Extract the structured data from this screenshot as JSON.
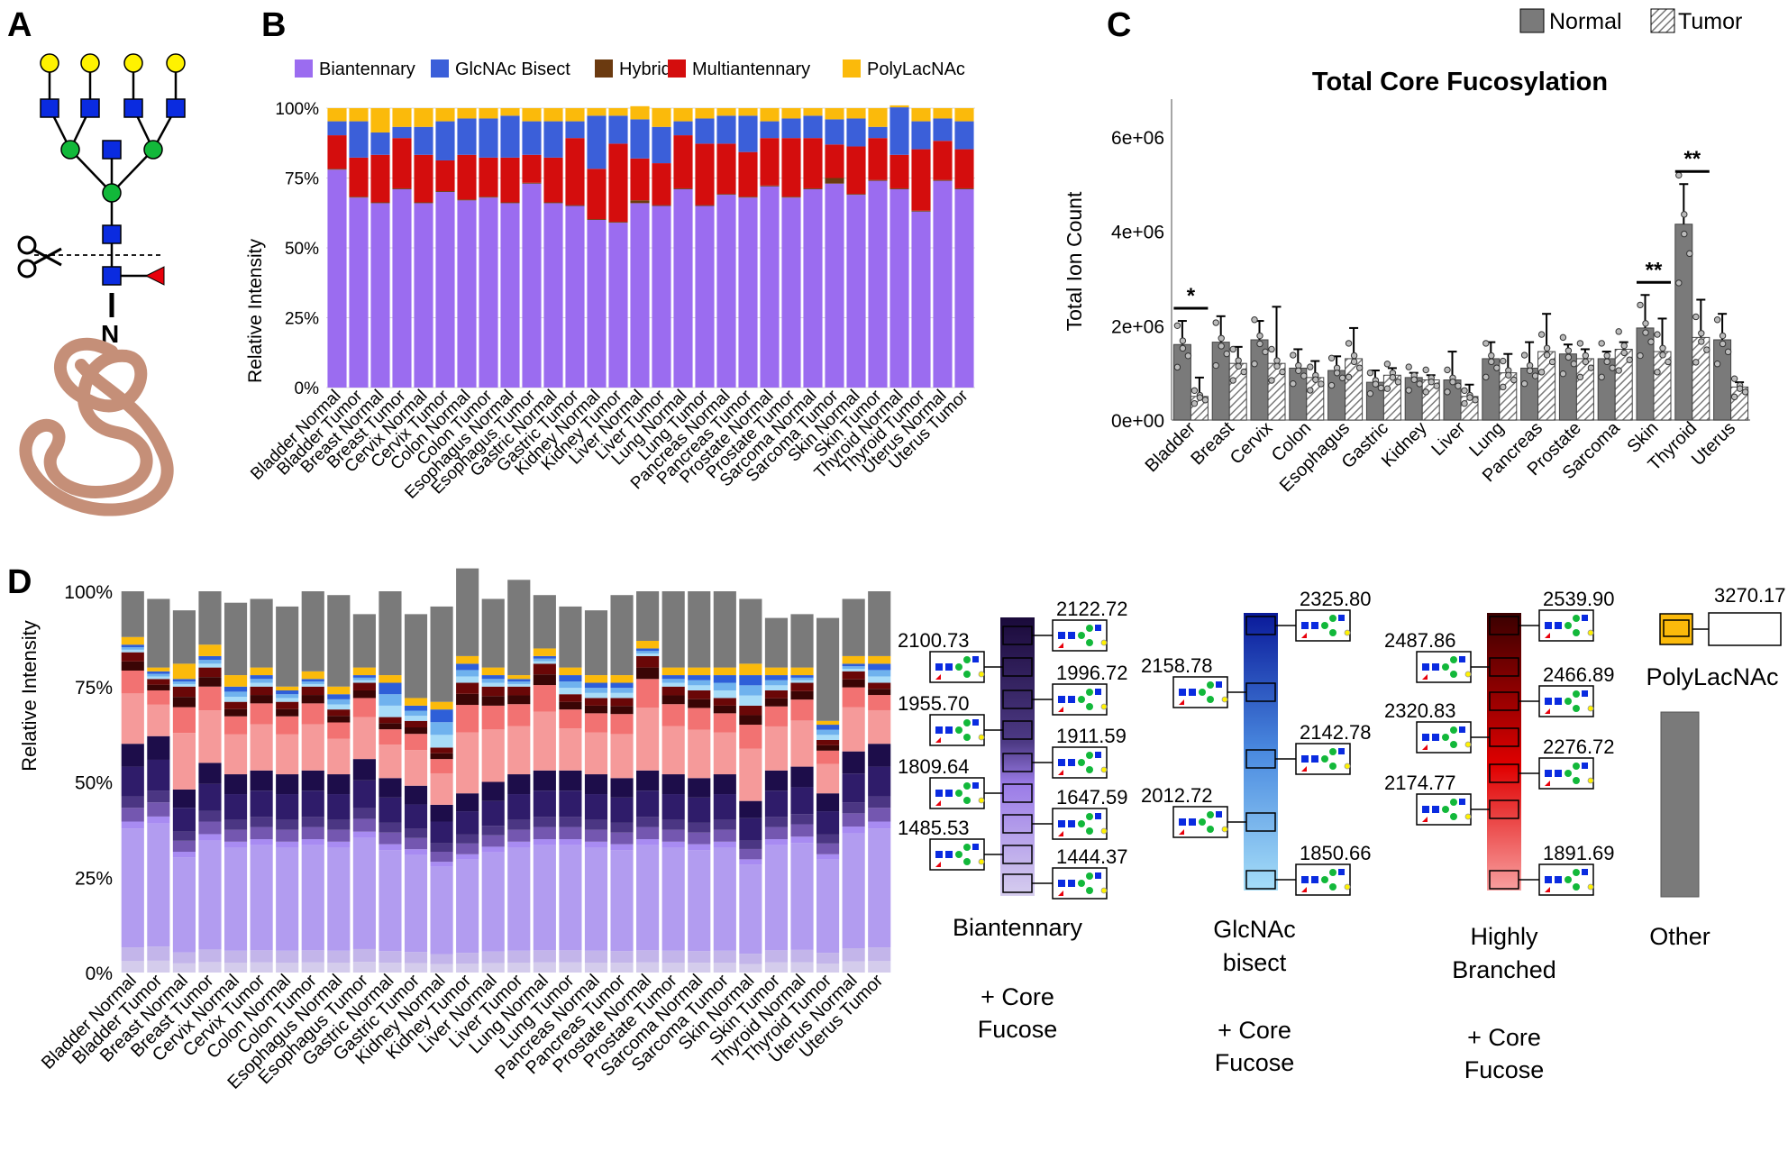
{
  "panels": {
    "a": {
      "letter": "A",
      "glycan_label": "N"
    },
    "b": {
      "letter": "B"
    },
    "c": {
      "letter": "C"
    },
    "d": {
      "letter": "D"
    }
  },
  "colors": {
    "biantennary": "#9B6CF0",
    "bisect": "#3B5FD9",
    "hybrid": "#6B3A10",
    "multi": "#D40D0D",
    "polylac": "#FBBA0B",
    "normal_bar": "#7a7a7a",
    "other": "#7a7a7a"
  },
  "chart_data": [
    {
      "id": "B",
      "type": "bar",
      "stacked": true,
      "ylabel": "Relative Intensity",
      "yticks": [
        "0%",
        "25%",
        "50%",
        "75%",
        "100%"
      ],
      "ylim": [
        0,
        100
      ],
      "legend": [
        "Biantennary",
        "GlcNAc Bisect",
        "Hybrid",
        "Multiantennary",
        "PolyLacNAc"
      ],
      "categories": [
        "Bladder Normal",
        "Bladder Tumor",
        "Breast Normal",
        "Breast Tumor",
        "Cervix Normal",
        "Cervix Tumor",
        "Colon Normal",
        "Colon Tumor",
        "Esophagus Normal",
        "Esophagus Tumor",
        "Gastric Normal",
        "Gastric Tumor",
        "Kidney Normal",
        "Kidney Tumor",
        "Liver Normal",
        "Liver Tumor",
        "Lung Normal",
        "Lung Tumor",
        "Pancreas Normal",
        "Pancreas Tumor",
        "Prostate Normal",
        "Prostate Tumor",
        "Sarcoma Normal",
        "Sarcoma Tumor",
        "Skin Normal",
        "Skin Tumor",
        "Thyroid Normal",
        "Thyroid Tumor",
        "Uterus Normal",
        "Uterus Tumor"
      ],
      "series": [
        {
          "name": "Biantennary",
          "values": [
            78,
            68,
            66,
            71,
            66,
            70,
            67,
            68,
            66,
            73,
            66,
            65,
            60,
            59,
            66,
            65,
            71,
            65,
            69,
            68,
            72,
            68,
            71,
            73,
            69,
            74,
            71,
            63,
            74,
            71
          ]
        },
        {
          "name": "Hybrid",
          "values": [
            0.3,
            0.3,
            0.3,
            0.3,
            0.3,
            0.3,
            0.3,
            0.3,
            0.3,
            0.3,
            0.3,
            0.3,
            0.3,
            0.3,
            1,
            0.3,
            0.3,
            0.3,
            0.3,
            0.3,
            0.3,
            0.3,
            0.3,
            2,
            0.3,
            0.3,
            0.3,
            0.3,
            0.3,
            0.3
          ]
        },
        {
          "name": "Multiantennary",
          "values": [
            12,
            14,
            17,
            18,
            17,
            11,
            16,
            14,
            16,
            10,
            16,
            24,
            18,
            28,
            15,
            15,
            19,
            22,
            18,
            16,
            17,
            21,
            18,
            12,
            17,
            15,
            12,
            22,
            14,
            14
          ]
        },
        {
          "name": "GlcNAc Bisect",
          "values": [
            5,
            13,
            8,
            4,
            10,
            14,
            13,
            14,
            15,
            12,
            13,
            6,
            19,
            10,
            14,
            13,
            5,
            9,
            10,
            13,
            6,
            7,
            8,
            9,
            10,
            4,
            17,
            10,
            8,
            10
          ]
        },
        {
          "name": "PolyLacNAc",
          "values": [
            4.7,
            4.7,
            8.7,
            6.7,
            6.7,
            4.7,
            3.7,
            3.7,
            2.7,
            4.7,
            4.7,
            4.7,
            2.7,
            2.7,
            4.7,
            6.7,
            4.7,
            3.7,
            2.7,
            2.7,
            4.7,
            3.7,
            2.7,
            4,
            3.7,
            6.7,
            0.7,
            4.7,
            3.7,
            4.7
          ]
        }
      ]
    },
    {
      "id": "C",
      "type": "bar",
      "title": "Total Core Fucosylation",
      "ylabel": "Total Ion Count",
      "yticks": [
        "0e+00",
        "2e+06",
        "4e+06",
        "6e+06"
      ],
      "ylim": [
        0,
        6800000
      ],
      "legend": [
        "Normal",
        "Tumor"
      ],
      "categories": [
        "Bladder",
        "Breast",
        "Cervix",
        "Colon",
        "Esophagus",
        "Gastric",
        "Kidney",
        "Liver",
        "Lung",
        "Pancreas",
        "Prostate",
        "Sarcoma",
        "Skin",
        "Thyroid",
        "Uterus"
      ],
      "series": [
        {
          "name": "Normal",
          "values": [
            1600000,
            1650000,
            1700000,
            1100000,
            1050000,
            800000,
            900000,
            850000,
            1300000,
            1100000,
            1400000,
            1300000,
            1950000,
            4150000,
            1700000
          ]
        },
        {
          "name": "Tumor",
          "values": [
            500000,
            1200000,
            1200000,
            900000,
            1300000,
            950000,
            850000,
            500000,
            1000000,
            1450000,
            1300000,
            1500000,
            1450000,
            1750000,
            700000
          ]
        }
      ],
      "error_top": {
        "Normal": [
          2100000,
          2200000,
          2100000,
          1500000,
          1350000,
          1050000,
          1000000,
          1450000,
          1650000,
          1650000,
          1600000,
          1450000,
          2650000,
          5000000,
          2250000
        ],
        "Tumor": [
          900000,
          1550000,
          2400000,
          1250000,
          1950000,
          1100000,
          950000,
          750000,
          1400000,
          2250000,
          1500000,
          1650000,
          2150000,
          2550000,
          800000
        ]
      },
      "significance": [
        {
          "category": "Bladder",
          "label": "*"
        },
        {
          "category": "Skin",
          "label": "**"
        },
        {
          "category": "Thyroid",
          "label": "**"
        }
      ]
    },
    {
      "id": "D",
      "type": "bar",
      "stacked": true,
      "ylabel": "Relative Intensity",
      "yticks": [
        "0%",
        "25%",
        "50%",
        "75%",
        "100%"
      ],
      "ylim": [
        0,
        100
      ],
      "categories": [
        "Bladder Normal",
        "Bladder Tumor",
        "Breast Normal",
        "Breast Tumor",
        "Cervix Normal",
        "Cervix Tumor",
        "Colon Normal",
        "Colon Tumor",
        "Esophagus Normal",
        "Esophagus Tumor",
        "Gastric Normal",
        "Gastric Tumor",
        "Kidney Normal",
        "Kidney Tumor",
        "Liver Normal",
        "Liver Tumor",
        "Lung Normal",
        "Lung Tumor",
        "Pancreas Normal",
        "Pancreas Tumor",
        "Prostate Normal",
        "Prostate Tumor",
        "Sarcoma Normal",
        "Sarcoma Tumor",
        "Skin Normal",
        "Skin Tumor",
        "Thyroid Normal",
        "Thyroid Tumor",
        "Uterus Normal",
        "Uterus Tumor"
      ],
      "group_totals": {
        "Biantennary + Core Fucose": [
          60,
          62,
          48,
          55,
          52,
          53,
          52,
          53,
          52,
          56,
          51,
          49,
          44,
          47,
          50,
          52,
          53,
          53,
          52,
          51,
          53,
          52,
          51,
          52,
          45,
          53,
          54,
          47,
          58,
          60
        ],
        "Highly Branched + Core Fucose": [
          24,
          15,
          27,
          25,
          19,
          22,
          19,
          22,
          17,
          20,
          16,
          17,
          15,
          29,
          25,
          23,
          28,
          20,
          20,
          21,
          30,
          23,
          23,
          20,
          25,
          21,
          22,
          14,
          21,
          16
        ],
        "GlcNAc bisect + Core Fucose": [
          2,
          2,
          2,
          3,
          4,
          3,
          3,
          2,
          4,
          2,
          9,
          4,
          10,
          5,
          3,
          2,
          2,
          5,
          4,
          4,
          2,
          3,
          4,
          6,
          8,
          4,
          2,
          4,
          2,
          5
        ],
        "PolyLacNAc": [
          2,
          1,
          4,
          3,
          3,
          2,
          1,
          2,
          2,
          2,
          2,
          2,
          2,
          2,
          2,
          1,
          2,
          2,
          2,
          2,
          2,
          2,
          2,
          2,
          3,
          2,
          2,
          1,
          2,
          2
        ],
        "Other": [
          12,
          18,
          14,
          14,
          19,
          18,
          21,
          21,
          24,
          14,
          22,
          22,
          25,
          23,
          18,
          25,
          14,
          16,
          17,
          21,
          13,
          20,
          20,
          20,
          17,
          13,
          14,
          27,
          15,
          17
        ]
      },
      "legend_groups": [
        {
          "name": "Biantennary",
          "suffix": [
            "+ Core",
            "Fucose"
          ],
          "masses": [
            "2100.73",
            "2122.72",
            "1955.70",
            "1996.72",
            "1809.64",
            "1911.59",
            "1485.53",
            "1647.59",
            "1444.37"
          ]
        },
        {
          "name": "GlcNAc bisect",
          "suffix": [
            "+ Core",
            "Fucose"
          ],
          "masses": [
            "2325.80",
            "2158.78",
            "2142.78",
            "2012.72",
            "1850.66"
          ]
        },
        {
          "name": "Highly Branched",
          "suffix": [
            "+ Core",
            "Fucose"
          ],
          "masses": [
            "2539.90",
            "2487.86",
            "2466.89",
            "2320.83",
            "2276.72",
            "2174.77",
            "1891.69"
          ]
        },
        {
          "name": "PolyLacNAc",
          "masses": [
            "3270.17"
          ]
        },
        {
          "name": "Other"
        }
      ]
    }
  ]
}
